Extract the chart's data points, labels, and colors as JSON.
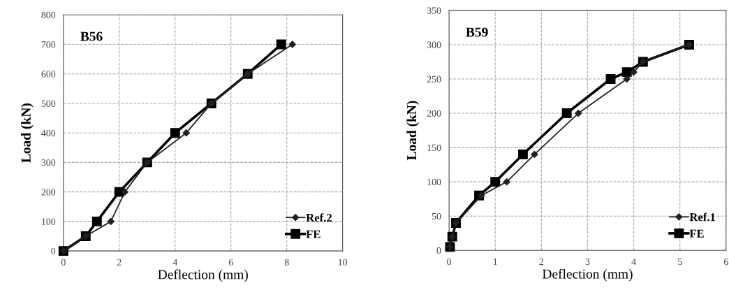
{
  "chart_data": [
    {
      "type": "line",
      "title": "B56",
      "xlabel": "Deflection (mm)",
      "ylabel": "Load (kN)",
      "xlim": [
        0,
        10
      ],
      "xticks": [
        0,
        2,
        4,
        6,
        8,
        10
      ],
      "ylim": [
        0,
        800
      ],
      "yticks": [
        0,
        100,
        200,
        300,
        400,
        500,
        600,
        700,
        800
      ],
      "grid": true,
      "legend": "bottom right",
      "series": [
        {
          "name": "Ref.2",
          "color": "#222222",
          "marker": "diamond",
          "x": [
            0,
            0.8,
            1.7,
            2.2,
            3,
            4.4,
            5.3,
            6.6,
            8.2
          ],
          "values": [
            0,
            50,
            100,
            200,
            300,
            400,
            500,
            600,
            700
          ]
        },
        {
          "name": "FE",
          "color": "#000000",
          "marker": "square",
          "x": [
            0,
            0.8,
            1.2,
            2,
            3,
            4,
            5.3,
            6.6,
            7.8
          ],
          "values": [
            0,
            50,
            100,
            200,
            300,
            400,
            500,
            600,
            700
          ]
        }
      ]
    },
    {
      "type": "line",
      "title": "B59",
      "xlabel": "Deflection (mm)",
      "ylabel": "Load (kN)",
      "xlim": [
        0,
        6
      ],
      "xticks": [
        0,
        1,
        2,
        3,
        4,
        5,
        6
      ],
      "ylim": [
        0,
        350
      ],
      "yticks": [
        0,
        50,
        100,
        150,
        200,
        250,
        300,
        350
      ],
      "grid": true,
      "legend": "bottom right",
      "series": [
        {
          "name": "Ref.1",
          "color": "#222222",
          "marker": "diamond",
          "x": [
            0.02,
            0.07,
            0.15,
            0.7,
            1.25,
            1.85,
            2.8,
            3.85,
            4,
            4.2,
            5.2
          ],
          "values": [
            5,
            20,
            40,
            80,
            100,
            140,
            200,
            250,
            260,
            275,
            300
          ]
        },
        {
          "name": "FE",
          "color": "#000000",
          "marker": "square",
          "x": [
            0.02,
            0.07,
            0.15,
            0.65,
            1,
            1.6,
            2.55,
            3.5,
            3.85,
            4.2,
            5.2
          ],
          "values": [
            5,
            20,
            40,
            80,
            100,
            140,
            200,
            250,
            260,
            275,
            300
          ]
        }
      ]
    }
  ]
}
